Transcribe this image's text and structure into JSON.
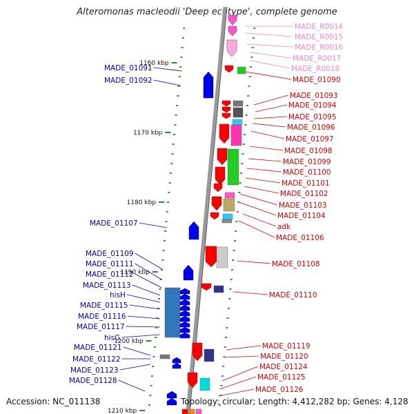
{
  "title": "Alteromonas macleodii 'Deep ecotype', complete genome",
  "footer": {
    "accession": "Accession: NC_011138",
    "summary": "Topology: circular; Length: 4,412,282 bp; Genes: 4,128"
  },
  "colors": {
    "left_label": "#0000cc",
    "right_label": "#dd0000",
    "rna_label": "#ee88cc",
    "backbone": "#888888",
    "tick": "#228822"
  },
  "scale_ticks": [
    {
      "label": "1160 kbp"
    },
    {
      "label": "1170 kbp"
    },
    {
      "label": "1180 kbp"
    },
    {
      "label": "1190 kbp"
    },
    {
      "label": "1200 kbp"
    },
    {
      "label": "1210 kbp"
    }
  ],
  "left_labels": [
    {
      "text": "MADE_01091",
      "color": "#0000cc"
    },
    {
      "text": "MADE_01092",
      "color": "#0000cc"
    },
    {
      "text": "MADE_01107",
      "color": "#0000cc"
    },
    {
      "text": "MADE_01109",
      "color": "#0000cc"
    },
    {
      "text": "MADE_01111",
      "color": "#0000cc"
    },
    {
      "text": "MADE_01112",
      "color": "#0000cc"
    },
    {
      "text": "MADE_01113",
      "color": "#0000cc"
    },
    {
      "text": "hisH",
      "color": "#0000cc"
    },
    {
      "text": "MADE_01115",
      "color": "#0000cc"
    },
    {
      "text": "MADE_01116",
      "color": "#0000cc"
    },
    {
      "text": "MADE_01117",
      "color": "#0000cc"
    },
    {
      "text": "hisG",
      "color": "#0000cc"
    },
    {
      "text": "MADE_01121",
      "color": "#0000cc"
    },
    {
      "text": "MADE_01122",
      "color": "#0000cc"
    },
    {
      "text": "MADE_01123",
      "color": "#0000cc"
    },
    {
      "text": "MADE_01128",
      "color": "#0000cc"
    }
  ],
  "right_labels": [
    {
      "text": "MADE_R0014",
      "color": "#ee88cc"
    },
    {
      "text": "MADE_R0015",
      "color": "#ee88cc"
    },
    {
      "text": "MADE_R0016",
      "color": "#ee88cc"
    },
    {
      "text": "MADE_R0017",
      "color": "#ee88cc"
    },
    {
      "text": "MADE_R0018",
      "color": "#ee88cc"
    },
    {
      "text": "MADE_01090",
      "color": "#dd0000"
    },
    {
      "text": "MADE_01093",
      "color": "#dd0000"
    },
    {
      "text": "MADE_01094",
      "color": "#dd0000"
    },
    {
      "text": "MADE_01095",
      "color": "#dd0000"
    },
    {
      "text": "MADE_01096",
      "color": "#dd0000"
    },
    {
      "text": "MADE_01097",
      "color": "#dd0000"
    },
    {
      "text": "MADE_01098",
      "color": "#dd0000"
    },
    {
      "text": "MADE_01099",
      "color": "#dd0000"
    },
    {
      "text": "MADE_01100",
      "color": "#dd0000"
    },
    {
      "text": "MADE_01101",
      "color": "#dd0000"
    },
    {
      "text": "MADE_01102",
      "color": "#dd0000"
    },
    {
      "text": "MADE_01103",
      "color": "#dd0000"
    },
    {
      "text": "MADE_01104",
      "color": "#dd0000"
    },
    {
      "text": "adk",
      "color": "#dd0000"
    },
    {
      "text": "MADE_01106",
      "color": "#dd0000"
    },
    {
      "text": "MADE_01108",
      "color": "#dd0000"
    },
    {
      "text": "MADE_01110",
      "color": "#dd0000"
    },
    {
      "text": "MADE_01119",
      "color": "#dd0000"
    },
    {
      "text": "MADE_01120",
      "color": "#dd0000"
    },
    {
      "text": "MADE_01124",
      "color": "#dd0000"
    },
    {
      "text": "MADE_01125",
      "color": "#dd0000"
    },
    {
      "text": "MADE_01126",
      "color": "#dd0000"
    }
  ]
}
